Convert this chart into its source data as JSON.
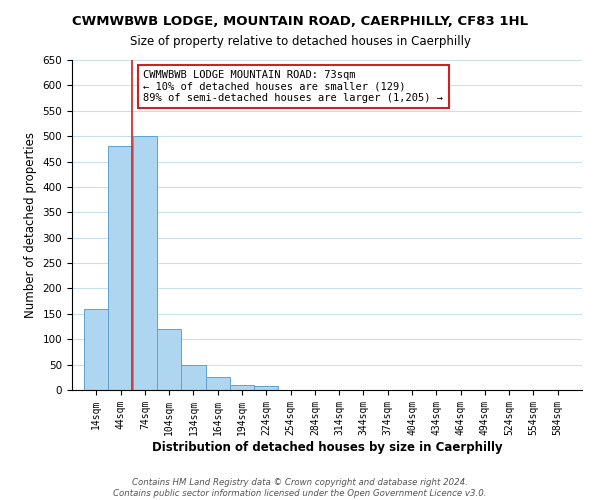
{
  "title": "CWMWBWB LODGE, MOUNTAIN ROAD, CAERPHILLY, CF83 1HL",
  "subtitle": "Size of property relative to detached houses in Caerphilly",
  "bar_edges": [
    14,
    44,
    74,
    104,
    134,
    164,
    194,
    224,
    254,
    284,
    314,
    344,
    374,
    404,
    434,
    464,
    494,
    524,
    554,
    584,
    614
  ],
  "bar_heights": [
    160,
    480,
    500,
    120,
    50,
    25,
    10,
    7,
    0,
    0,
    0,
    0,
    0,
    0,
    0,
    0,
    0,
    0,
    0,
    0
  ],
  "bar_color": "#aed6f1",
  "bar_edge_color": "#5ba3d0",
  "property_line_x": 73,
  "property_line_color": "#cc2222",
  "ylim": [
    0,
    650
  ],
  "yticks": [
    0,
    50,
    100,
    150,
    200,
    250,
    300,
    350,
    400,
    450,
    500,
    550,
    600,
    650
  ],
  "ylabel": "Number of detached properties",
  "xlabel": "Distribution of detached houses by size in Caerphilly",
  "annotation_title": "CWMWBWB LODGE MOUNTAIN ROAD: 73sqm",
  "annotation_line1": "← 10% of detached houses are smaller (129)",
  "annotation_line2": "89% of semi-detached houses are larger (1,205) →",
  "footer_line1": "Contains HM Land Registry data © Crown copyright and database right 2024.",
  "footer_line2": "Contains public sector information licensed under the Open Government Licence v3.0.",
  "bg_color": "#ffffff",
  "grid_color": "#c8dff0"
}
